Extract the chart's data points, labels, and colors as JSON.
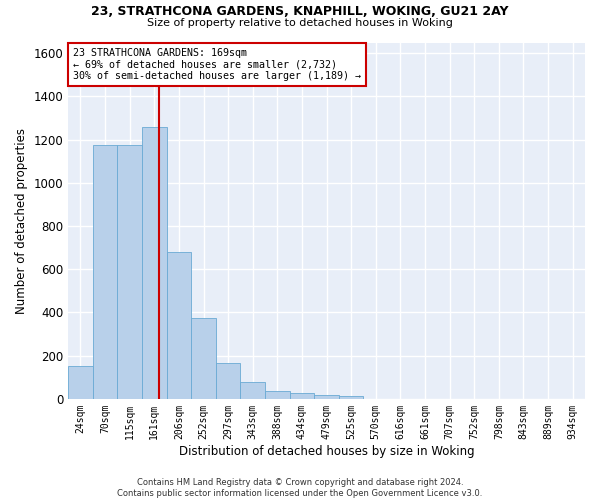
{
  "title1": "23, STRATHCONA GARDENS, KNAPHILL, WOKING, GU21 2AY",
  "title2": "Size of property relative to detached houses in Woking",
  "xlabel": "Distribution of detached houses by size in Woking",
  "ylabel": "Number of detached properties",
  "bar_labels": [
    "24sqm",
    "70sqm",
    "115sqm",
    "161sqm",
    "206sqm",
    "252sqm",
    "297sqm",
    "343sqm",
    "388sqm",
    "434sqm",
    "479sqm",
    "525sqm",
    "570sqm",
    "616sqm",
    "661sqm",
    "707sqm",
    "752sqm",
    "798sqm",
    "843sqm",
    "889sqm",
    "934sqm"
  ],
  "bar_heights": [
    150,
    1175,
    1175,
    1260,
    680,
    375,
    165,
    80,
    35,
    25,
    20,
    15,
    0,
    0,
    0,
    0,
    0,
    0,
    0,
    0,
    0
  ],
  "bar_color": "#b8d0ea",
  "bar_edge_color": "#6aaad4",
  "background_color": "#e8eef8",
  "grid_color": "#ffffff",
  "property_line_x": 3.18,
  "property_line_color": "#cc0000",
  "annotation_text": "23 STRATHCONA GARDENS: 169sqm\n← 69% of detached houses are smaller (2,732)\n30% of semi-detached houses are larger (1,189) →",
  "annotation_box_color": "#cc0000",
  "ylim": [
    0,
    1650
  ],
  "yticks": [
    0,
    200,
    400,
    600,
    800,
    1000,
    1200,
    1400,
    1600
  ],
  "footer1": "Contains HM Land Registry data © Crown copyright and database right 2024.",
  "footer2": "Contains public sector information licensed under the Open Government Licence v3.0."
}
